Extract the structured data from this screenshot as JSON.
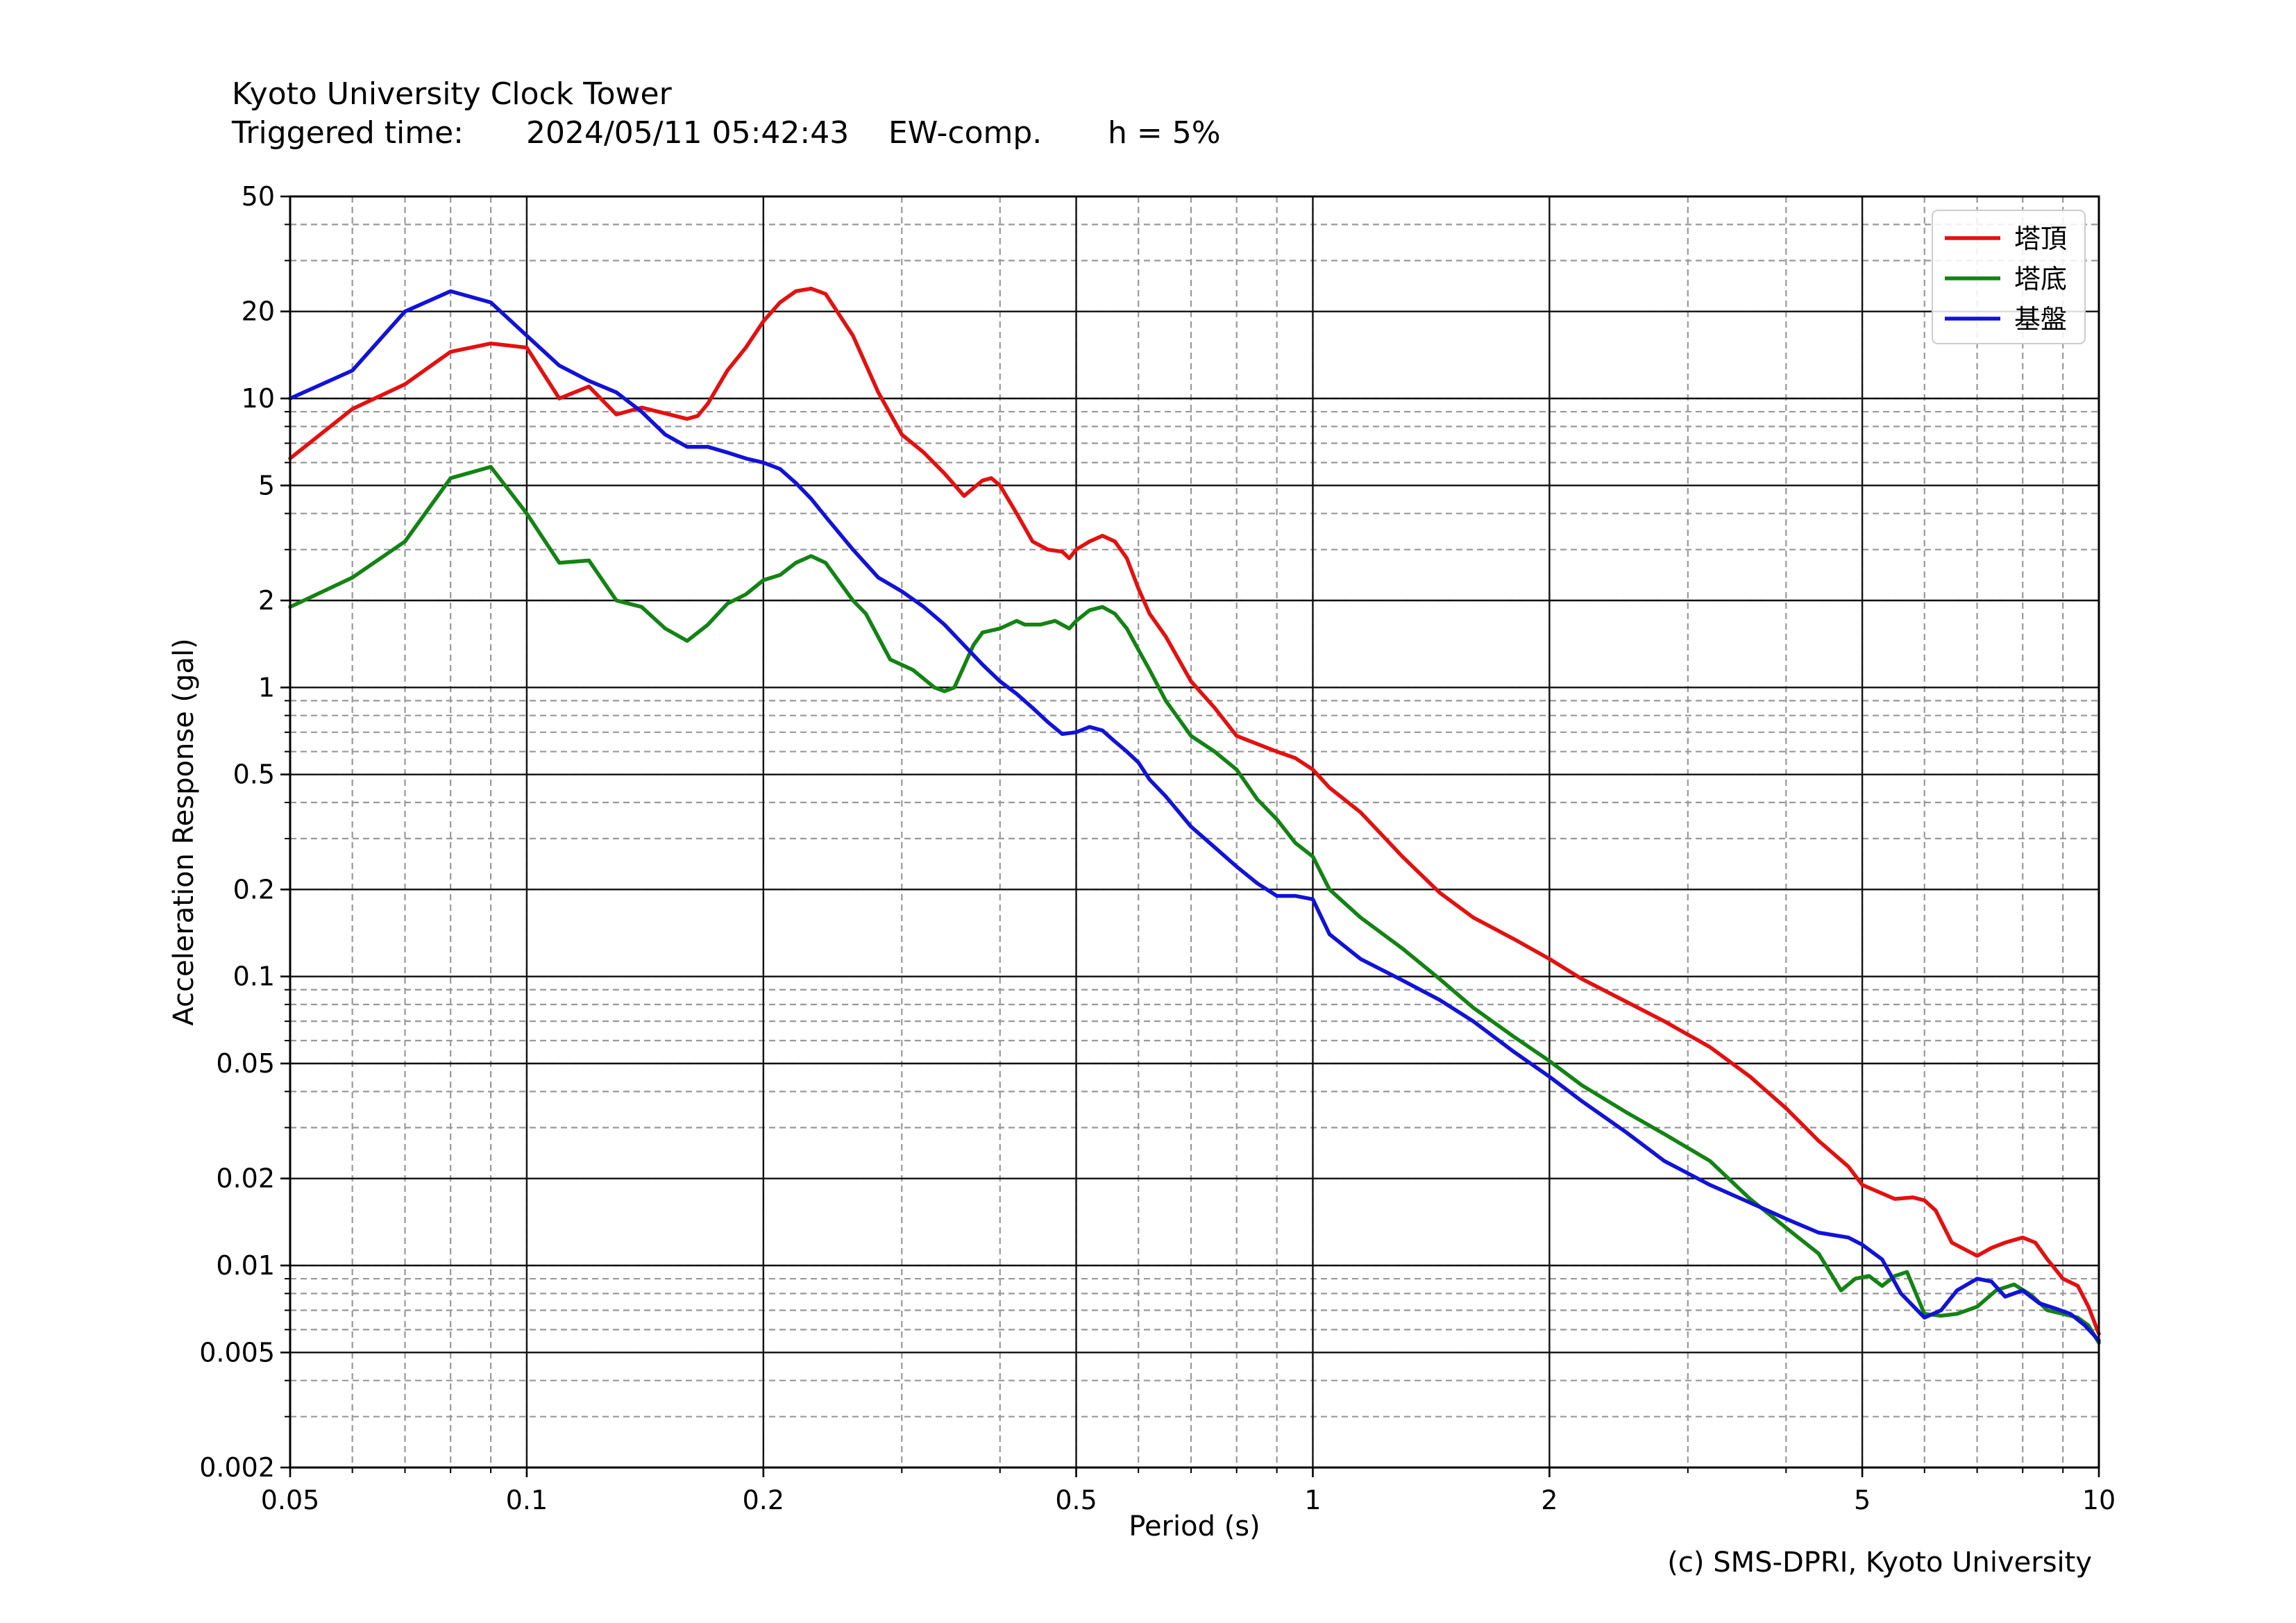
{
  "header": {
    "station": "Kyoto University Clock Tower",
    "triggered_label": "Triggered time:",
    "triggered_value": "2024/05/11 05:42:43",
    "component": "EW-comp.",
    "damping": "h = 5%"
  },
  "credit": "(c) SMS-DPRI, Kyoto University",
  "chart_data": {
    "type": "line",
    "title": "",
    "xlabel": "Period (s)",
    "ylabel": "Acceleration Response (gal)",
    "xscale": "log",
    "yscale": "log",
    "xlim": [
      0.05,
      10
    ],
    "ylim": [
      0.002,
      50
    ],
    "x_ticks": [
      {
        "value": 0.05,
        "label": "0.05"
      },
      {
        "value": 0.1,
        "label": "0.1"
      },
      {
        "value": 0.2,
        "label": "0.2"
      },
      {
        "value": 0.5,
        "label": "0.5"
      },
      {
        "value": 1,
        "label": "1"
      },
      {
        "value": 2,
        "label": "2"
      },
      {
        "value": 5,
        "label": "5"
      },
      {
        "value": 10,
        "label": "10"
      }
    ],
    "y_ticks": [
      {
        "value": 0.002,
        "label": "0.002"
      },
      {
        "value": 0.005,
        "label": "0.005"
      },
      {
        "value": 0.01,
        "label": "0.01"
      },
      {
        "value": 0.02,
        "label": "0.02"
      },
      {
        "value": 0.05,
        "label": "0.05"
      },
      {
        "value": 0.1,
        "label": "0.1"
      },
      {
        "value": 0.2,
        "label": "0.2"
      },
      {
        "value": 0.5,
        "label": "0.5"
      },
      {
        "value": 1,
        "label": "1"
      },
      {
        "value": 2,
        "label": "2"
      },
      {
        "value": 5,
        "label": "5"
      },
      {
        "value": 10,
        "label": "10"
      },
      {
        "value": 20,
        "label": "20"
      },
      {
        "value": 50,
        "label": "50"
      }
    ],
    "grid": "major solid, minor dashed",
    "legend_position": "top-right",
    "series": [
      {
        "name": "塔頂",
        "color": "#e41010",
        "points": [
          [
            0.05,
            6.2
          ],
          [
            0.06,
            9.2
          ],
          [
            0.07,
            11.2
          ],
          [
            0.08,
            14.5
          ],
          [
            0.09,
            15.5
          ],
          [
            0.1,
            15.0
          ],
          [
            0.11,
            10.0
          ],
          [
            0.12,
            11.0
          ],
          [
            0.13,
            8.8
          ],
          [
            0.14,
            9.3
          ],
          [
            0.16,
            8.5
          ],
          [
            0.165,
            8.7
          ],
          [
            0.17,
            9.6
          ],
          [
            0.18,
            12.5
          ],
          [
            0.19,
            15.0
          ],
          [
            0.2,
            18.5
          ],
          [
            0.21,
            21.5
          ],
          [
            0.22,
            23.5
          ],
          [
            0.23,
            24.0
          ],
          [
            0.24,
            23.0
          ],
          [
            0.26,
            16.5
          ],
          [
            0.28,
            10.5
          ],
          [
            0.3,
            7.5
          ],
          [
            0.32,
            6.5
          ],
          [
            0.34,
            5.5
          ],
          [
            0.36,
            4.6
          ],
          [
            0.38,
            5.2
          ],
          [
            0.39,
            5.3
          ],
          [
            0.4,
            5.0
          ],
          [
            0.42,
            4.0
          ],
          [
            0.44,
            3.2
          ],
          [
            0.46,
            3.0
          ],
          [
            0.48,
            2.95
          ],
          [
            0.49,
            2.8
          ],
          [
            0.5,
            3.0
          ],
          [
            0.52,
            3.2
          ],
          [
            0.54,
            3.35
          ],
          [
            0.56,
            3.2
          ],
          [
            0.58,
            2.8
          ],
          [
            0.6,
            2.2
          ],
          [
            0.62,
            1.8
          ],
          [
            0.65,
            1.5
          ],
          [
            0.7,
            1.05
          ],
          [
            0.75,
            0.85
          ],
          [
            0.8,
            0.68
          ],
          [
            0.9,
            0.6
          ],
          [
            0.95,
            0.57
          ],
          [
            1.0,
            0.52
          ],
          [
            1.05,
            0.45
          ],
          [
            1.15,
            0.37
          ],
          [
            1.3,
            0.26
          ],
          [
            1.45,
            0.195
          ],
          [
            1.6,
            0.16
          ],
          [
            1.8,
            0.135
          ],
          [
            2.0,
            0.115
          ],
          [
            2.2,
            0.098
          ],
          [
            2.5,
            0.082
          ],
          [
            2.8,
            0.07
          ],
          [
            3.2,
            0.057
          ],
          [
            3.6,
            0.045
          ],
          [
            4.0,
            0.035
          ],
          [
            4.4,
            0.027
          ],
          [
            4.8,
            0.022
          ],
          [
            5.0,
            0.019
          ],
          [
            5.5,
            0.017
          ],
          [
            5.8,
            0.0172
          ],
          [
            6.0,
            0.0168
          ],
          [
            6.2,
            0.0155
          ],
          [
            6.5,
            0.012
          ],
          [
            7.0,
            0.0108
          ],
          [
            7.3,
            0.0115
          ],
          [
            7.6,
            0.012
          ],
          [
            8.0,
            0.0125
          ],
          [
            8.3,
            0.012
          ],
          [
            8.6,
            0.0105
          ],
          [
            9.0,
            0.009
          ],
          [
            9.4,
            0.0085
          ],
          [
            9.7,
            0.0072
          ],
          [
            10,
            0.0058
          ]
        ]
      },
      {
        "name": "塔底",
        "color": "#138313",
        "points": [
          [
            0.05,
            1.9
          ],
          [
            0.06,
            2.4
          ],
          [
            0.07,
            3.2
          ],
          [
            0.08,
            5.3
          ],
          [
            0.09,
            5.8
          ],
          [
            0.1,
            4.0
          ],
          [
            0.11,
            2.7
          ],
          [
            0.12,
            2.75
          ],
          [
            0.13,
            2.0
          ],
          [
            0.14,
            1.9
          ],
          [
            0.15,
            1.6
          ],
          [
            0.16,
            1.45
          ],
          [
            0.17,
            1.65
          ],
          [
            0.18,
            1.95
          ],
          [
            0.19,
            2.1
          ],
          [
            0.2,
            2.35
          ],
          [
            0.21,
            2.45
          ],
          [
            0.22,
            2.7
          ],
          [
            0.23,
            2.85
          ],
          [
            0.24,
            2.7
          ],
          [
            0.26,
            2.0
          ],
          [
            0.27,
            1.8
          ],
          [
            0.29,
            1.25
          ],
          [
            0.31,
            1.15
          ],
          [
            0.33,
            1.0
          ],
          [
            0.34,
            0.97
          ],
          [
            0.35,
            1.0
          ],
          [
            0.37,
            1.4
          ],
          [
            0.38,
            1.55
          ],
          [
            0.4,
            1.6
          ],
          [
            0.42,
            1.7
          ],
          [
            0.43,
            1.65
          ],
          [
            0.45,
            1.65
          ],
          [
            0.47,
            1.7
          ],
          [
            0.49,
            1.6
          ],
          [
            0.5,
            1.7
          ],
          [
            0.52,
            1.85
          ],
          [
            0.54,
            1.9
          ],
          [
            0.56,
            1.8
          ],
          [
            0.58,
            1.6
          ],
          [
            0.6,
            1.35
          ],
          [
            0.62,
            1.15
          ],
          [
            0.65,
            0.9
          ],
          [
            0.7,
            0.68
          ],
          [
            0.75,
            0.6
          ],
          [
            0.8,
            0.52
          ],
          [
            0.85,
            0.41
          ],
          [
            0.9,
            0.35
          ],
          [
            0.95,
            0.29
          ],
          [
            1.0,
            0.26
          ],
          [
            1.05,
            0.2
          ],
          [
            1.15,
            0.16
          ],
          [
            1.3,
            0.125
          ],
          [
            1.45,
            0.098
          ],
          [
            1.6,
            0.078
          ],
          [
            1.8,
            0.062
          ],
          [
            2.0,
            0.051
          ],
          [
            2.2,
            0.042
          ],
          [
            2.5,
            0.034
          ],
          [
            2.8,
            0.0285
          ],
          [
            3.2,
            0.023
          ],
          [
            3.6,
            0.017
          ],
          [
            4.0,
            0.0135
          ],
          [
            4.4,
            0.011
          ],
          [
            4.7,
            0.0082
          ],
          [
            4.9,
            0.009
          ],
          [
            5.1,
            0.0092
          ],
          [
            5.3,
            0.0085
          ],
          [
            5.5,
            0.0092
          ],
          [
            5.7,
            0.0095
          ],
          [
            6.0,
            0.0068
          ],
          [
            6.3,
            0.0067
          ],
          [
            6.6,
            0.0068
          ],
          [
            7.0,
            0.0072
          ],
          [
            7.4,
            0.0082
          ],
          [
            7.8,
            0.0086
          ],
          [
            8.2,
            0.0079
          ],
          [
            8.6,
            0.007
          ],
          [
            9.0,
            0.0068
          ],
          [
            9.4,
            0.0066
          ],
          [
            9.7,
            0.0062
          ],
          [
            10,
            0.0054
          ]
        ]
      },
      {
        "name": "基盤",
        "color": "#1212d8",
        "points": [
          [
            0.05,
            10.0
          ],
          [
            0.06,
            12.5
          ],
          [
            0.07,
            20.0
          ],
          [
            0.08,
            23.5
          ],
          [
            0.09,
            21.5
          ],
          [
            0.1,
            16.5
          ],
          [
            0.11,
            13.0
          ],
          [
            0.12,
            11.5
          ],
          [
            0.13,
            10.5
          ],
          [
            0.14,
            9.0
          ],
          [
            0.15,
            7.5
          ],
          [
            0.16,
            6.8
          ],
          [
            0.17,
            6.8
          ],
          [
            0.18,
            6.5
          ],
          [
            0.19,
            6.2
          ],
          [
            0.2,
            6.0
          ],
          [
            0.21,
            5.7
          ],
          [
            0.22,
            5.1
          ],
          [
            0.23,
            4.5
          ],
          [
            0.24,
            3.9
          ],
          [
            0.26,
            3.0
          ],
          [
            0.28,
            2.4
          ],
          [
            0.3,
            2.15
          ],
          [
            0.32,
            1.9
          ],
          [
            0.34,
            1.65
          ],
          [
            0.36,
            1.4
          ],
          [
            0.38,
            1.2
          ],
          [
            0.4,
            1.05
          ],
          [
            0.42,
            0.95
          ],
          [
            0.44,
            0.85
          ],
          [
            0.46,
            0.76
          ],
          [
            0.48,
            0.69
          ],
          [
            0.5,
            0.7
          ],
          [
            0.52,
            0.73
          ],
          [
            0.54,
            0.71
          ],
          [
            0.56,
            0.65
          ],
          [
            0.58,
            0.6
          ],
          [
            0.6,
            0.55
          ],
          [
            0.62,
            0.48
          ],
          [
            0.65,
            0.42
          ],
          [
            0.7,
            0.33
          ],
          [
            0.75,
            0.28
          ],
          [
            0.8,
            0.24
          ],
          [
            0.85,
            0.21
          ],
          [
            0.9,
            0.19
          ],
          [
            0.95,
            0.19
          ],
          [
            1.0,
            0.185
          ],
          [
            1.05,
            0.14
          ],
          [
            1.15,
            0.115
          ],
          [
            1.3,
            0.097
          ],
          [
            1.45,
            0.083
          ],
          [
            1.6,
            0.07
          ],
          [
            1.8,
            0.055
          ],
          [
            2.0,
            0.045
          ],
          [
            2.2,
            0.037
          ],
          [
            2.5,
            0.029
          ],
          [
            2.8,
            0.023
          ],
          [
            3.2,
            0.019
          ],
          [
            3.6,
            0.0165
          ],
          [
            4.0,
            0.0145
          ],
          [
            4.4,
            0.013
          ],
          [
            4.8,
            0.0125
          ],
          [
            5.0,
            0.0118
          ],
          [
            5.3,
            0.0105
          ],
          [
            5.6,
            0.008
          ],
          [
            6.0,
            0.0066
          ],
          [
            6.3,
            0.007
          ],
          [
            6.6,
            0.0082
          ],
          [
            7.0,
            0.009
          ],
          [
            7.3,
            0.0088
          ],
          [
            7.6,
            0.0078
          ],
          [
            8.0,
            0.0082
          ],
          [
            8.4,
            0.0074
          ],
          [
            8.8,
            0.0071
          ],
          [
            9.2,
            0.0068
          ],
          [
            9.6,
            0.0062
          ],
          [
            10,
            0.0055
          ]
        ]
      }
    ]
  }
}
